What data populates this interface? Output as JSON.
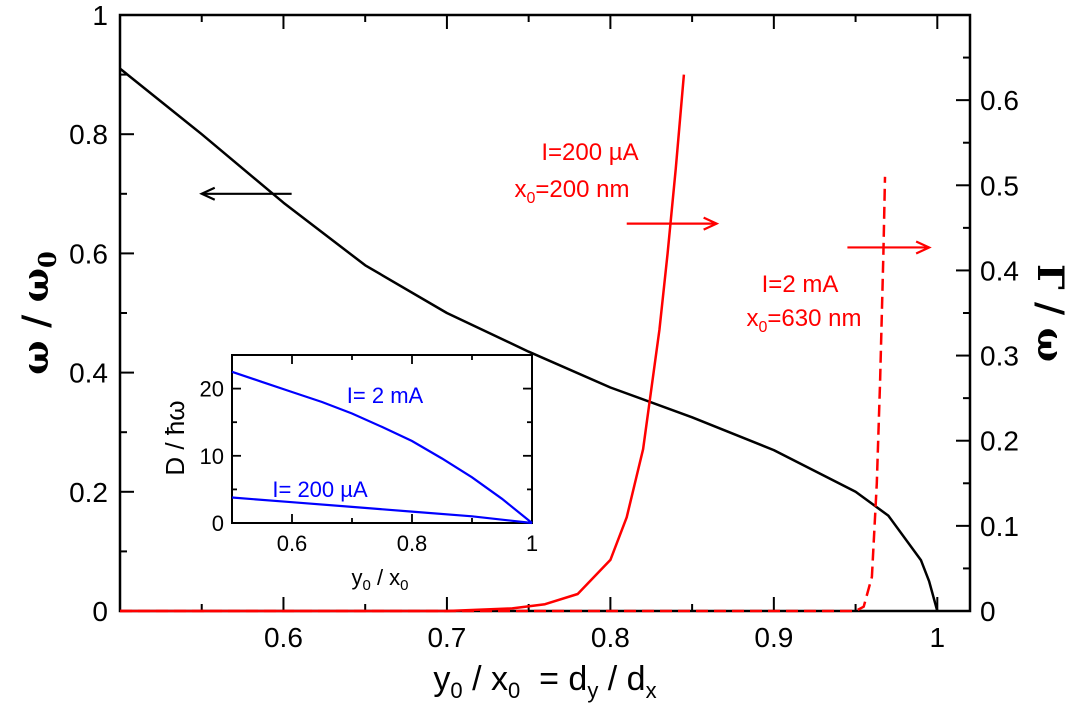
{
  "colors": {
    "black": "#000000",
    "red": "#ff0000",
    "blue": "#0000ff",
    "background": "#ffffff"
  },
  "chart_data": [
    {
      "type": "line",
      "name": "main",
      "xlabel_parts": {
        "y": "y",
        "y_sub": "0",
        "slash1": " / x",
        "x_sub": "0",
        "eq": "  = d",
        "d_sub1": "y",
        "slash2": " / d",
        "d_sub2": "x"
      },
      "ylabel_left": {
        "omega": "ω / ω",
        "sub": "0"
      },
      "ylabel_right": {
        "text": "Γ / ω"
      },
      "xlim": [
        0.5,
        1.02
      ],
      "ylim_left": [
        0,
        1
      ],
      "ylim_right": [
        0,
        0.7
      ],
      "xticks": [
        0.6,
        0.7,
        0.8,
        0.9,
        1
      ],
      "xtick_labels": [
        "0.6",
        "0.7",
        "0.8",
        "0.9",
        "1"
      ],
      "yticks_left": [
        0,
        0.2,
        0.4,
        0.6,
        0.8,
        1
      ],
      "ytick_labels_left": [
        "0",
        "0.2",
        "0.4",
        "0.6",
        "0.8",
        "1"
      ],
      "yticks_right": [
        0,
        0.1,
        0.2,
        0.3,
        0.4,
        0.5,
        0.6
      ],
      "ytick_labels_right": [
        "0",
        "0.1",
        "0.2",
        "0.3",
        "0.4",
        "0.5",
        "0.6"
      ],
      "series": [
        {
          "name": "omega/omega0",
          "axis": "left",
          "color": "#000000",
          "style": "solid",
          "x": [
            0.5,
            0.55,
            0.6,
            0.65,
            0.7,
            0.75,
            0.8,
            0.85,
            0.9,
            0.95,
            0.97,
            0.99,
            0.995,
            1.0
          ],
          "y": [
            0.91,
            0.8,
            0.685,
            0.58,
            0.5,
            0.435,
            0.375,
            0.325,
            0.27,
            0.2,
            0.16,
            0.085,
            0.05,
            0.0
          ]
        },
        {
          "name": "Gamma/omega I=200 µA",
          "axis": "right",
          "color": "#ff0000",
          "style": "solid",
          "x": [
            0.5,
            0.7,
            0.74,
            0.76,
            0.78,
            0.8,
            0.81,
            0.82,
            0.83,
            0.835,
            0.84,
            0.845
          ],
          "y": [
            0.0,
            0.0,
            0.003,
            0.008,
            0.02,
            0.06,
            0.11,
            0.19,
            0.33,
            0.42,
            0.52,
            0.63
          ]
        },
        {
          "name": "Gamma/omega I=2 mA",
          "axis": "right",
          "color": "#ff0000",
          "style": "dashed",
          "x": [
            0.5,
            0.95,
            0.955,
            0.96,
            0.963,
            0.965,
            0.967,
            0.968
          ],
          "y": [
            0.0,
            0.0,
            0.005,
            0.04,
            0.15,
            0.27,
            0.42,
            0.51
          ]
        }
      ],
      "annotations": {
        "red1_line1": "I=200 µA",
        "red1_line2_prefix": "x",
        "red1_line2_sub": "0",
        "red1_line2_suffix": "=200 nm",
        "red2_line1": "I=2 mA",
        "red2_line2_prefix": "x",
        "red2_line2_sub": "0",
        "red2_line2_suffix": "=630 nm"
      },
      "arrows": [
        {
          "direction": "left",
          "color": "#000000",
          "from_x": 0.605,
          "to_x": 0.55,
          "y_left": 0.7
        },
        {
          "direction": "right",
          "color": "#ff0000",
          "from_x": 0.81,
          "to_x": 0.865,
          "y_left": 0.65
        },
        {
          "direction": "right",
          "color": "#ff0000",
          "from_x": 0.945,
          "to_x": 0.995,
          "y_left": 0.61
        }
      ]
    },
    {
      "type": "line",
      "name": "inset",
      "ylabel": "D / ħω",
      "xlabel_parts": {
        "y": "y",
        "y_sub": "0",
        "slash": " / x",
        "x_sub": "0"
      },
      "xlim": [
        0.5,
        1.0
      ],
      "ylim": [
        0,
        25
      ],
      "xticks": [
        0.6,
        0.8,
        1
      ],
      "xtick_labels": [
        "0.6",
        "0.8",
        "1"
      ],
      "yticks": [
        0,
        10,
        20
      ],
      "ytick_labels": [
        "0",
        "10",
        "20"
      ],
      "series": [
        {
          "name": "I= 2 mA",
          "color": "#0000ff",
          "x": [
            0.5,
            0.55,
            0.6,
            0.65,
            0.7,
            0.75,
            0.8,
            0.85,
            0.9,
            0.95,
            1.0
          ],
          "y": [
            22.5,
            21.0,
            19.5,
            18.0,
            16.3,
            14.3,
            12.2,
            9.6,
            6.8,
            3.6,
            0.0
          ]
        },
        {
          "name": "I= 200 µA",
          "color": "#0000ff",
          "x": [
            0.5,
            0.6,
            0.7,
            0.8,
            0.9,
            1.0
          ],
          "y": [
            3.8,
            3.1,
            2.4,
            1.7,
            1.0,
            0.0
          ]
        }
      ],
      "annotations": {
        "blue1": "I= 2 mA",
        "blue2": "I= 200 µA"
      }
    }
  ]
}
